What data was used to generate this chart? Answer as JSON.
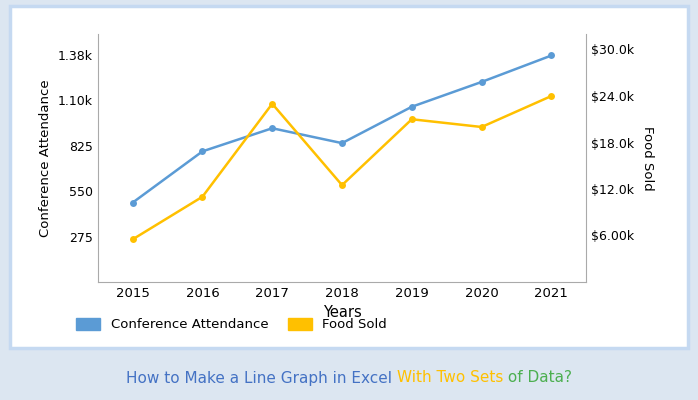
{
  "years": [
    2015,
    2016,
    2017,
    2018,
    2019,
    2020,
    2021
  ],
  "conference_attendance": [
    480,
    790,
    930,
    840,
    1060,
    1210,
    1370
  ],
  "food_sold": [
    5500,
    11000,
    23000,
    12500,
    21000,
    20000,
    24000
  ],
  "left_ylabel": "Conference Attendance",
  "right_ylabel": "Food Sold",
  "xlabel": "Years",
  "line1_color": "#5B9BD5",
  "line2_color": "#FFC000",
  "left_yticks": [
    275,
    550,
    825,
    1100,
    1375
  ],
  "left_ylabels": [
    "275",
    "550",
    "825",
    "1.10k",
    "1.38k"
  ],
  "right_yticks": [
    6000,
    12000,
    18000,
    24000,
    30000
  ],
  "right_ylabels": [
    "$6.00k",
    "$12.0k",
    "$18.0k",
    "$24.0k",
    "$30.0k"
  ],
  "legend_labels": [
    "Conference Attendance",
    "Food Sold"
  ],
  "border_color": "#C5D9F1",
  "bg_outer": "#DCE6F1",
  "bg_inner": "#FFFFFF",
  "marker_size": 5,
  "title_part1": "How to Make a Line Graph in Excel ",
  "title_part2": "With Two Sets",
  "title_part3": " of Data?",
  "title_color1": "#4472C4",
  "title_color2": "#FFC000",
  "title_color3": "#4CAF50",
  "title_fontsize": 11
}
